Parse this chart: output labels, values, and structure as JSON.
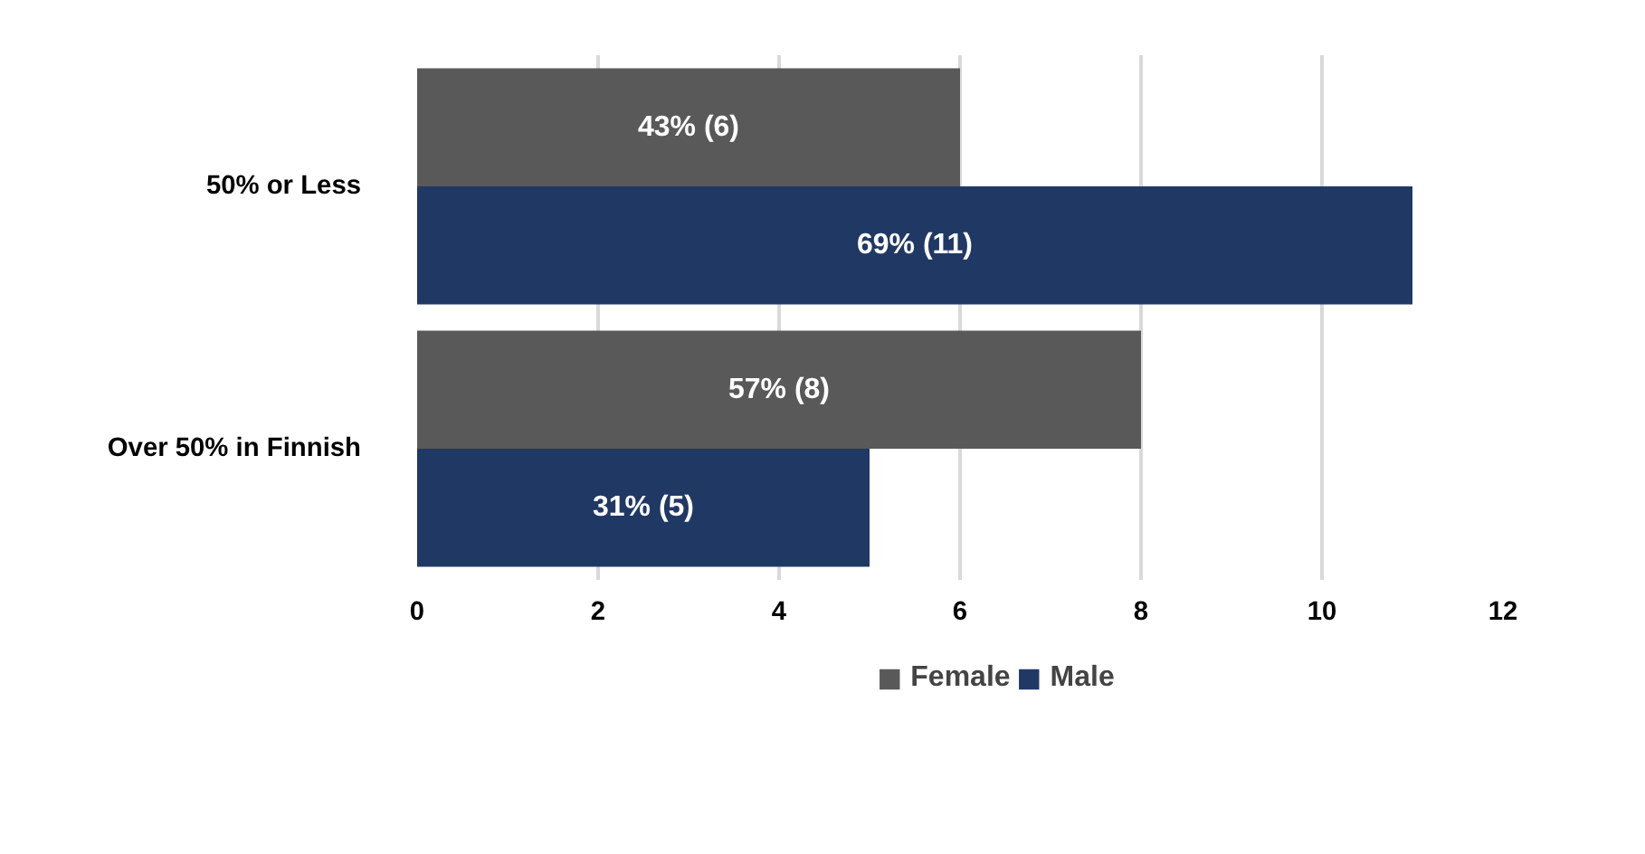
{
  "chart_data": {
    "type": "bar",
    "orientation": "horizontal",
    "categories": [
      "50% or Less",
      "Over 50% in Finnish"
    ],
    "series": [
      {
        "name": "Female",
        "color": "#595959",
        "values": [
          6,
          8
        ],
        "value_labels": [
          "43% (6)",
          "57% (8)"
        ]
      },
      {
        "name": "Male",
        "color": "#203864",
        "values": [
          11,
          5
        ],
        "value_labels": [
          "69% (11)",
          "31% (5)"
        ]
      }
    ],
    "xlim": [
      0,
      12
    ],
    "xticks": [
      0,
      2,
      4,
      6,
      8,
      10,
      12
    ],
    "grid": "x",
    "legend": "bottom"
  }
}
